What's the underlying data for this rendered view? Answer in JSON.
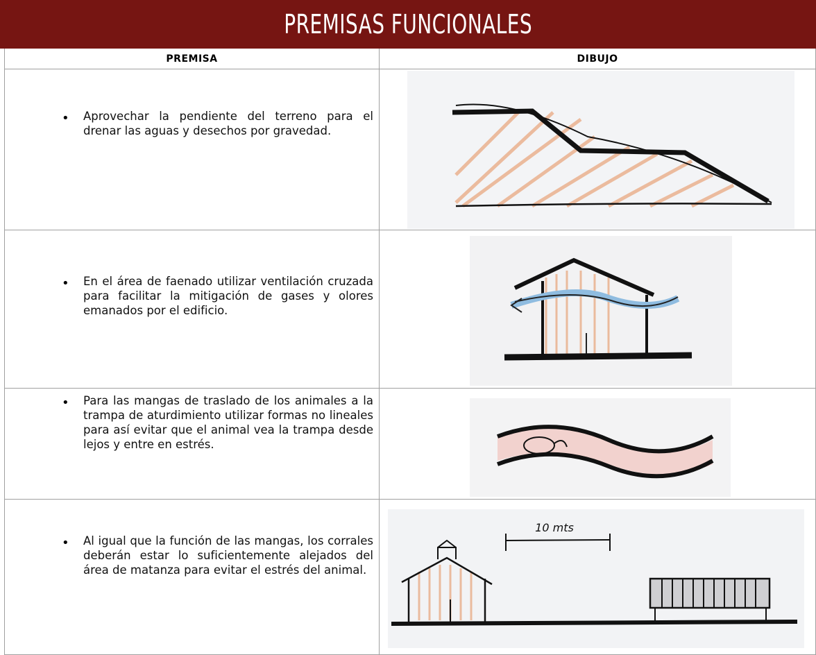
{
  "header": {
    "title": "PREMISAS FUNCIONALES"
  },
  "table": {
    "columns": [
      "PREMISA",
      "DIBUJO"
    ],
    "rows": [
      {
        "premise": "Aprovechar la pendiente del terreno para el drenar las aguas y desechos por gravedad."
      },
      {
        "premise": "En el área de faenado utilizar ventilación cruzada para facilitar la mitigación de gases y olores emanados por el edificio."
      },
      {
        "premise": "Para las mangas de traslado de los animales a la trampa de aturdimiento utilizar formas no lineales para así evitar que el animal vea la trampa desde lejos y entre en estrés."
      },
      {
        "premise": "Al igual que la función de las mangas, los corrales deberán estar lo suficientemente alejados del área de matanza para evitar el estrés del animal.",
        "drawing_label": "10 mts"
      }
    ]
  }
}
